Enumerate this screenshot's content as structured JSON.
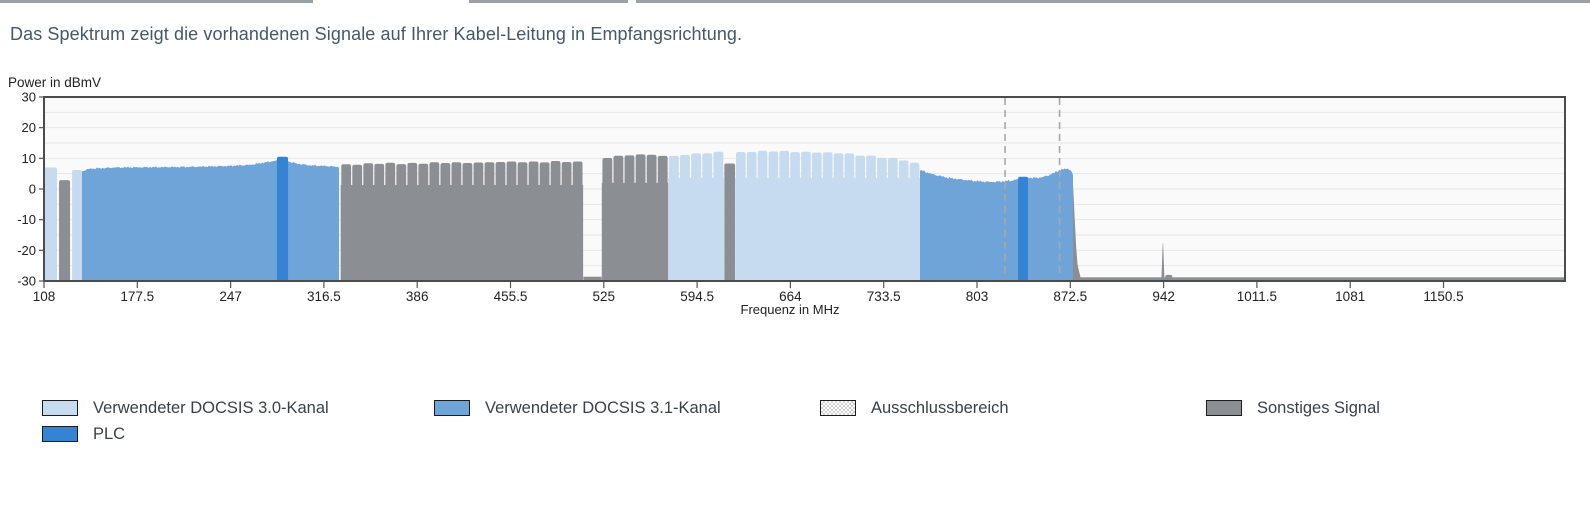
{
  "intro": "Das Spektrum zeigt die vorhandenen Signale auf Ihrer Kabel-Leitung in Empfangsrichtung.",
  "colors": {
    "docsis30": "#c6dbf0",
    "docsis31": "#6fa4d9",
    "plc": "#3583d3",
    "other": "#8b8f94",
    "exclusion_line": "#a8a8a8",
    "frame": "#4c4c4c",
    "grid": "#e7e7e7",
    "plot_bg": "#fafafa",
    "axis_text": "#222222"
  },
  "legend": {
    "items": [
      {
        "label": "Verwendeter DOCSIS 3.0-Kanal",
        "type": "docsis30"
      },
      {
        "label": "Verwendeter DOCSIS 3.1-Kanal",
        "type": "docsis31"
      },
      {
        "label": "Ausschlussbereich",
        "type": "exclusion"
      },
      {
        "label": "Sonstiges Signal",
        "type": "other"
      },
      {
        "label": "PLC",
        "type": "plc"
      }
    ]
  },
  "chart_data": {
    "type": "area",
    "title": "",
    "xlabel": "Frequenz in MHz",
    "ylabel": "Power in dBmV",
    "xlim": [
      108,
      1241
    ],
    "ylim": [
      -30,
      30
    ],
    "x_ticks": [
      108,
      177.5,
      247,
      316.5,
      386,
      455.5,
      525,
      594.5,
      664,
      733.5,
      803,
      872.5,
      942,
      1011.5,
      1081,
      1150.5
    ],
    "y_ticks": [
      30,
      20,
      10,
      0,
      -10,
      -20,
      -30
    ],
    "grid_step_db": 5,
    "grid": true,
    "legend_position": "bottom",
    "exclusion_lines_mhz": [
      823.9,
      864.5
    ],
    "regions": [
      {
        "kind": "comb",
        "color": "other",
        "f0": 329,
        "f1": 509.6,
        "ch": 8.209,
        "notch": 1.3,
        "env": [
          [
            329,
            8.0
          ],
          [
            360,
            8.3
          ],
          [
            420,
            8.6
          ],
          [
            470,
            8.9
          ],
          [
            500,
            8.9
          ],
          [
            509.6,
            8.6
          ]
        ]
      },
      {
        "kind": "noise",
        "color": "other",
        "f0": 509.8,
        "f1": 523.3,
        "top": -28.6
      },
      {
        "kind": "comb",
        "color": "other",
        "f0": 523.5,
        "f1": 573,
        "ch": 8.25,
        "notch": 2.0,
        "env": [
          [
            523.5,
            10.0
          ],
          [
            535,
            10.8
          ],
          [
            548,
            11.2
          ],
          [
            562,
            11.1
          ],
          [
            573,
            10.6
          ]
        ]
      },
      {
        "kind": "area",
        "color": "other",
        "f0": 868,
        "f1": 880,
        "j": 0.15,
        "env": [
          [
            868,
            5.5
          ],
          [
            871,
            6.3
          ],
          [
            873,
            5.8
          ],
          [
            874.5,
            2
          ],
          [
            876,
            -12
          ],
          [
            877.5,
            -24
          ],
          [
            880,
            -28.5
          ]
        ]
      },
      {
        "kind": "noise",
        "color": "other",
        "f0": 877,
        "f1": 1241,
        "top": -28.8
      },
      {
        "kind": "comb",
        "color": "docsis30",
        "f0": 573,
        "f1": 614.5,
        "ch": 8.3,
        "notch": 3.6,
        "env": [
          [
            573,
            10.7
          ],
          [
            592,
            11.5
          ],
          [
            614.5,
            12.0
          ]
        ]
      },
      {
        "kind": "block",
        "color": "other",
        "f0": 614.8,
        "f1": 622.8,
        "top": 8.3
      },
      {
        "kind": "comb",
        "color": "docsis30",
        "f0": 623,
        "f1": 760.5,
        "ch": 8.088,
        "notch": 3.6,
        "env": [
          [
            623,
            12.1
          ],
          [
            650,
            12.3
          ],
          [
            672,
            12.2
          ],
          [
            690,
            11.9
          ],
          [
            708,
            11.4
          ],
          [
            726,
            10.7
          ],
          [
            742,
            9.9
          ],
          [
            753,
            8.8
          ],
          [
            760.5,
            8.1
          ]
        ]
      },
      {
        "kind": "area",
        "color": "docsis31",
        "f0": 136.3,
        "f1": 327.8,
        "j": 0.35,
        "env": [
          [
            136.3,
            5.8
          ],
          [
            142,
            6.6
          ],
          [
            160,
            7.0
          ],
          [
            185,
            7.1
          ],
          [
            215,
            7.2
          ],
          [
            245,
            7.5
          ],
          [
            262,
            7.9
          ],
          [
            276,
            8.9
          ],
          [
            283,
            9.4
          ],
          [
            288,
            9.3
          ],
          [
            296,
            8.3
          ],
          [
            306,
            7.7
          ],
          [
            318,
            7.5
          ],
          [
            327.8,
            7.2
          ]
        ]
      },
      {
        "kind": "area",
        "color": "docsis31",
        "f0": 760.5,
        "f1": 874.5,
        "j": 0.45,
        "env": [
          [
            760.5,
            6.2
          ],
          [
            770,
            4.8
          ],
          [
            782,
            3.6
          ],
          [
            795,
            2.9
          ],
          [
            805,
            2.5
          ],
          [
            812,
            2.3
          ],
          [
            820,
            2.4
          ],
          [
            828,
            2.7
          ],
          [
            836,
            3.4
          ],
          [
            842,
            3.7
          ],
          [
            848,
            3.6
          ],
          [
            855,
            4.2
          ],
          [
            860,
            5.2
          ],
          [
            864,
            6.0
          ],
          [
            868,
            6.5
          ],
          [
            871,
            6.7
          ],
          [
            873,
            6.0
          ],
          [
            874.5,
            4.5
          ]
        ]
      },
      {
        "kind": "block",
        "color": "docsis30",
        "f0": 108,
        "f1": 117.7,
        "top": 7.0
      },
      {
        "kind": "block",
        "color": "other",
        "f0": 119.2,
        "f1": 127.4,
        "top": 2.9
      },
      {
        "kind": "block",
        "color": "docsis30",
        "f0": 128.9,
        "f1": 136.3,
        "top": 6.2
      },
      {
        "kind": "block",
        "color": "plc",
        "f0": 281.5,
        "f1": 289.8,
        "top": 10.5
      },
      {
        "kind": "block",
        "color": "plc",
        "f0": 833.6,
        "f1": 841.0,
        "top": 4.0
      },
      {
        "kind": "spike",
        "color": "other",
        "f": 941.5,
        "top": -17.7
      },
      {
        "kind": "block",
        "color": "other",
        "f0": 943.2,
        "f1": 948.5,
        "top": -28.0
      }
    ]
  }
}
